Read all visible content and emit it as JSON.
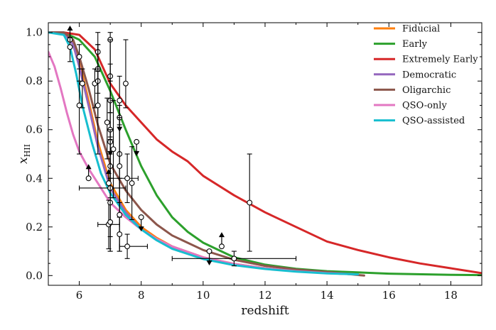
{
  "chart_data": {
    "type": "line",
    "title": "",
    "xlabel": "redshift",
    "ylabel": "x",
    "ylabel_sub": "HII",
    "xlim": [
      5,
      19
    ],
    "ylim": [
      -0.04,
      1.04
    ],
    "xticks": [
      6,
      8,
      10,
      12,
      14,
      16,
      18
    ],
    "yticks": [
      0.0,
      0.2,
      0.4,
      0.6,
      0.8,
      1.0
    ],
    "xtick_labels": [
      "6",
      "8",
      "10",
      "12",
      "14",
      "16",
      "18"
    ],
    "ytick_labels": [
      "0.0",
      "0.2",
      "0.4",
      "0.6",
      "0.8",
      "1.0"
    ],
    "legend_position": "top-right",
    "series": [
      {
        "name": "Fiducial",
        "color": "#ff7f0e",
        "x": [
          5.0,
          5.5,
          5.8,
          6.0,
          6.3,
          6.6,
          7.0,
          7.5,
          8.0,
          8.5,
          9.0,
          10.0,
          11.0,
          12.0,
          13.0,
          14.0,
          15.0
        ],
        "y": [
          1.0,
          1.0,
          0.96,
          0.88,
          0.72,
          0.55,
          0.38,
          0.27,
          0.2,
          0.155,
          0.12,
          0.075,
          0.048,
          0.03,
          0.018,
          0.01,
          0.005
        ]
      },
      {
        "name": "Early",
        "color": "#2ca02c",
        "x": [
          5.0,
          5.5,
          6.0,
          6.5,
          7.0,
          7.5,
          8.0,
          8.5,
          9.0,
          9.5,
          10.0,
          11.0,
          12.0,
          13.0,
          14.0,
          16.0,
          18.0,
          19.0
        ],
        "y": [
          1.0,
          1.0,
          0.97,
          0.9,
          0.76,
          0.6,
          0.45,
          0.33,
          0.24,
          0.18,
          0.135,
          0.075,
          0.045,
          0.028,
          0.018,
          0.008,
          0.003,
          0.002
        ]
      },
      {
        "name": "Extremely Early",
        "color": "#d62728",
        "x": [
          5.0,
          5.5,
          6.0,
          6.5,
          7.0,
          7.5,
          8.0,
          8.5,
          9.0,
          9.5,
          10.0,
          11.0,
          12.0,
          13.0,
          14.0,
          15.0,
          16.0,
          17.0,
          18.0,
          19.0
        ],
        "y": [
          1.0,
          1.0,
          0.99,
          0.93,
          0.79,
          0.7,
          0.63,
          0.56,
          0.51,
          0.47,
          0.41,
          0.33,
          0.26,
          0.2,
          0.14,
          0.105,
          0.075,
          0.05,
          0.03,
          0.01
        ]
      },
      {
        "name": "Democratic",
        "color": "#9467bd",
        "x": [
          5.0,
          5.5,
          5.8,
          6.0,
          6.3,
          6.6,
          7.0,
          7.5,
          8.0,
          8.5,
          9.0,
          10.0,
          11.0,
          12.0,
          13.0,
          14.0,
          15.0
        ],
        "y": [
          1.0,
          1.0,
          0.95,
          0.86,
          0.7,
          0.53,
          0.36,
          0.26,
          0.19,
          0.15,
          0.115,
          0.072,
          0.046,
          0.029,
          0.018,
          0.01,
          0.005
        ]
      },
      {
        "name": "Oligarchic",
        "color": "#8c564b",
        "x": [
          5.0,
          5.5,
          5.8,
          6.0,
          6.3,
          6.6,
          7.0,
          7.5,
          8.0,
          8.5,
          9.0,
          10.0,
          11.0,
          12.0,
          13.0,
          14.0,
          15.2
        ],
        "y": [
          1.0,
          1.0,
          0.97,
          0.9,
          0.77,
          0.62,
          0.46,
          0.35,
          0.27,
          0.21,
          0.165,
          0.105,
          0.065,
          0.04,
          0.025,
          0.015,
          0.0
        ]
      },
      {
        "name": "QSO-only",
        "color": "#e377c2",
        "x": [
          5.0,
          5.2,
          5.4,
          5.6,
          5.8,
          6.0,
          6.3,
          6.6,
          7.0,
          7.5,
          8.0,
          8.5,
          9.0,
          10.0,
          11.0,
          12.0,
          13.0,
          14.0,
          15.0
        ],
        "y": [
          0.92,
          0.86,
          0.77,
          0.67,
          0.58,
          0.51,
          0.44,
          0.38,
          0.3,
          0.24,
          0.19,
          0.15,
          0.12,
          0.075,
          0.048,
          0.03,
          0.018,
          0.01,
          0.005
        ]
      },
      {
        "name": "QSO-assisted",
        "color": "#17becf",
        "x": [
          5.0,
          5.5,
          5.7,
          5.9,
          6.1,
          6.4,
          6.7,
          7.0,
          7.5,
          8.0,
          8.5,
          9.0,
          10.0,
          11.0,
          12.0,
          13.0,
          14.0,
          15.0
        ],
        "y": [
          1.0,
          0.99,
          0.94,
          0.83,
          0.7,
          0.55,
          0.42,
          0.34,
          0.25,
          0.19,
          0.145,
          0.11,
          0.068,
          0.043,
          0.027,
          0.016,
          0.009,
          0.005
        ]
      }
    ],
    "observations": [
      {
        "x": 5.7,
        "y": 0.97,
        "limit": "lower"
      },
      {
        "x": 5.7,
        "y": 0.94,
        "yerr": [
          0.06,
          0.04
        ]
      },
      {
        "x": 6.0,
        "y": 0.9,
        "yerr": [
          0.1,
          0.05
        ]
      },
      {
        "x": 6.0,
        "y": 0.7,
        "yerr": [
          0.2,
          0.15
        ]
      },
      {
        "x": 6.1,
        "y": 0.79,
        "yerr": [
          0.1,
          0.06
        ]
      },
      {
        "x": 6.3,
        "y": 0.4,
        "limit": "lower"
      },
      {
        "x": 6.5,
        "y": 0.79,
        "yerr": [
          0.1,
          0.06
        ]
      },
      {
        "x": 6.6,
        "y": 0.92,
        "yerr": [
          0.08,
          0.08
        ]
      },
      {
        "x": 6.6,
        "y": 0.85,
        "yerr": [
          0.1,
          0.1
        ]
      },
      {
        "x": 6.6,
        "y": 0.8,
        "yerr": [
          0.15,
          0.15
        ]
      },
      {
        "x": 6.6,
        "y": 0.7,
        "yerr": [
          0.2,
          0.15
        ]
      },
      {
        "x": 6.9,
        "y": 0.63,
        "yerr": [
          0.15,
          0.1
        ]
      },
      {
        "x": 6.95,
        "y": 0.21,
        "xerr": [
          0.35,
          0.35
        ],
        "yerr": [
          0.1,
          0.1
        ]
      },
      {
        "x": 7.0,
        "y": 0.97,
        "yerr": [
          0.3,
          0.03
        ]
      },
      {
        "x": 7.0,
        "y": 0.82,
        "yerr": [
          0.15,
          0.15
        ]
      },
      {
        "x": 7.0,
        "y": 0.72,
        "yerr": [
          0.15,
          0.15
        ]
      },
      {
        "x": 7.0,
        "y": 0.6,
        "yerr": [
          0.2,
          0.2
        ]
      },
      {
        "x": 7.0,
        "y": 0.55,
        "limit": "upper"
      },
      {
        "x": 7.0,
        "y": 0.45,
        "yerr": [
          0.15,
          0.15
        ]
      },
      {
        "x": 7.0,
        "y": 0.36,
        "xerr": [
          1.0,
          0.5
        ],
        "yerr": [
          0.2,
          0.2
        ]
      },
      {
        "x": 7.0,
        "y": 0.3,
        "yerr": [
          0.2,
          0.2
        ]
      },
      {
        "x": 7.0,
        "y": 0.22,
        "yerr": [
          0.12,
          0.1
        ]
      },
      {
        "x": 6.95,
        "y": 0.38,
        "limit": "lower"
      },
      {
        "x": 7.1,
        "y": 0.52,
        "yerr": [
          0.2,
          0.2
        ]
      },
      {
        "x": 7.3,
        "y": 0.72,
        "yerr": [
          0.1,
          0.1
        ]
      },
      {
        "x": 7.3,
        "y": 0.65,
        "limit": "upper"
      },
      {
        "x": 7.3,
        "y": 0.5,
        "yerr": [
          0.2,
          0.2
        ]
      },
      {
        "x": 7.3,
        "y": 0.45,
        "yerr": [
          0.2,
          0.2
        ]
      },
      {
        "x": 7.3,
        "y": 0.25,
        "yerr": [
          0.15,
          0.15
        ]
      },
      {
        "x": 7.3,
        "y": 0.17,
        "yerr": [
          0.07,
          0.07
        ]
      },
      {
        "x": 7.5,
        "y": 0.79,
        "yerr": [
          0.1,
          0.18
        ]
      },
      {
        "x": 7.55,
        "y": 0.4,
        "xerr": [
          0.55,
          0.35
        ],
        "yerr": [
          0.1,
          0.1
        ]
      },
      {
        "x": 7.55,
        "y": 0.12,
        "xerr": [
          0.25,
          0.65
        ],
        "yerr": [
          0.05,
          0.05
        ]
      },
      {
        "x": 7.7,
        "y": 0.38,
        "yerr": [
          0.15,
          0.15
        ]
      },
      {
        "x": 7.85,
        "y": 0.55,
        "limit": "upper"
      },
      {
        "x": 8.0,
        "y": 0.24,
        "limit": "upper"
      },
      {
        "x": 10.2,
        "y": 0.1,
        "limit": "upper"
      },
      {
        "x": 10.6,
        "y": 0.12,
        "limit": "lower"
      },
      {
        "x": 11.0,
        "y": 0.07,
        "xerr": [
          2.0,
          2.0
        ],
        "yerr": [
          0.03,
          0.03
        ]
      },
      {
        "x": 11.5,
        "y": 0.3,
        "yerr": [
          0.2,
          0.2
        ]
      }
    ]
  }
}
